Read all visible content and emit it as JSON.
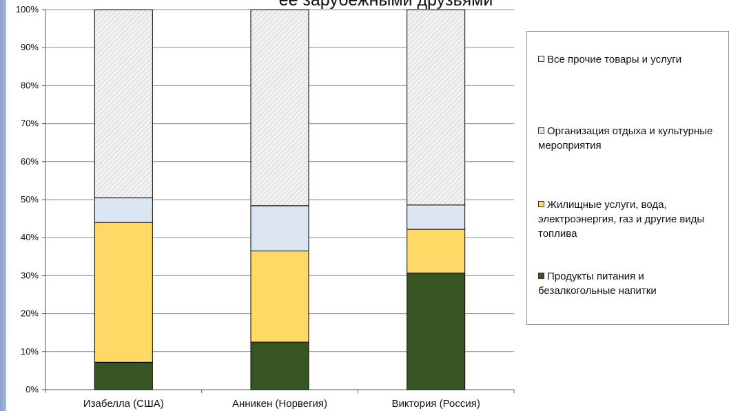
{
  "chart_data": {
    "type": "bar",
    "stacked": true,
    "title": "ее зарубежными друзьями",
    "categories": [
      "Изабелла (США)",
      "Анникен (Норвегия)",
      "Виктория (Россия)"
    ],
    "series": [
      {
        "name": "Продукты питания и безалкогольные напитки",
        "color": "#375623",
        "values": [
          7.2,
          12.5,
          30.7
        ]
      },
      {
        "name": "Жилищные услуги, вода, электроэнергия, газ и другие виды топлива",
        "color": "#ffd966",
        "values": [
          36.8,
          24.0,
          11.5
        ]
      },
      {
        "name": "Организация отдыха и культурные мероприятия",
        "color": "#dce6f2",
        "values": [
          6.5,
          11.9,
          6.4
        ]
      },
      {
        "name": "Все прочие товары и услуги",
        "color": "#efefef",
        "pattern": "diagonal-hatch",
        "values": [
          49.5,
          51.6,
          51.4
        ]
      }
    ],
    "yticks": [
      "0%",
      "10%",
      "20%",
      "30%",
      "40%",
      "50%",
      "60%",
      "70%",
      "80%",
      "90%",
      "100%"
    ],
    "ylim": [
      0,
      100
    ],
    "grid": true,
    "legend_position": "right"
  }
}
